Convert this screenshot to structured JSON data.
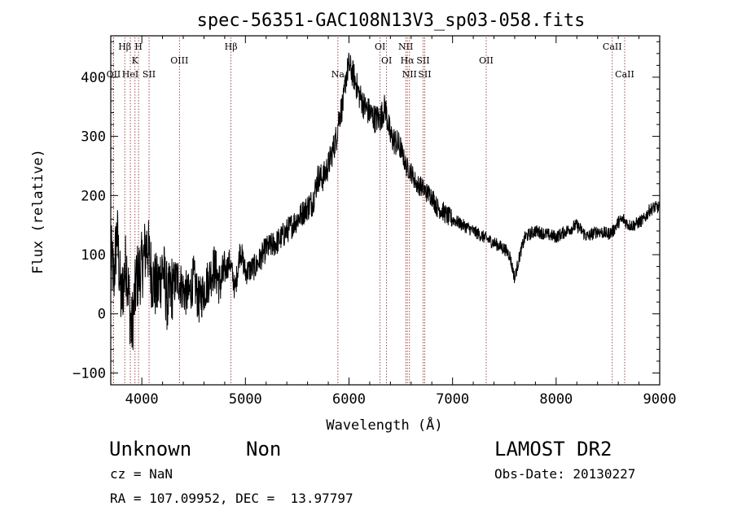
{
  "chart_data": {
    "type": "line",
    "title": "spec-56351-GAC108N13V3_sp03-058.fits",
    "xlabel": "Wavelength (Å)",
    "ylabel": "Flux (relative)",
    "xlim": [
      3700,
      9000
    ],
    "ylim": [
      -120,
      470
    ],
    "xticks": [
      4000,
      5000,
      6000,
      7000,
      8000,
      9000
    ],
    "yticks": [
      -100,
      0,
      100,
      200,
      300,
      400
    ],
    "grid": false,
    "series": [
      {
        "x": [
          3700,
          3730,
          3760,
          3800,
          3850,
          3900,
          3950,
          4000,
          4050,
          4100,
          4150,
          4200,
          4250,
          4300,
          4350,
          4400,
          4450,
          4500,
          4550,
          4600,
          4650,
          4700,
          4750,
          4800,
          4850,
          4900,
          4950,
          5000,
          5100,
          5200,
          5300,
          5400,
          5500,
          5600,
          5650,
          5700,
          5750,
          5800,
          5850,
          5880,
          5900,
          5950,
          5970,
          6000,
          6050,
          6100,
          6150,
          6200,
          6250,
          6300,
          6350,
          6400,
          6450,
          6500,
          6550,
          6600,
          6650,
          6700,
          6750,
          6800,
          6850,
          6900,
          6950,
          7000,
          7100,
          7200,
          7300,
          7400,
          7500,
          7550,
          7600,
          7650,
          7700,
          7800,
          7900,
          8000,
          8100,
          8200,
          8300,
          8400,
          8500,
          8550,
          8600,
          8650,
          8700,
          8750,
          8800,
          8850,
          8900,
          8950,
          9000
        ],
        "y": [
          100,
          60,
          140,
          20,
          90,
          -30,
          60,
          80,
          120,
          60,
          40,
          80,
          20,
          50,
          60,
          40,
          30,
          60,
          20,
          40,
          60,
          80,
          50,
          70,
          90,
          40,
          110,
          70,
          80,
          110,
          120,
          140,
          160,
          180,
          190,
          230,
          230,
          250,
          280,
          300,
          330,
          360,
          400,
          420,
          400,
          370,
          350,
          340,
          330,
          330,
          350,
          300,
          290,
          280,
          250,
          240,
          220,
          215,
          205,
          200,
          180,
          175,
          165,
          160,
          150,
          140,
          130,
          120,
          110,
          100,
          60,
          100,
          130,
          140,
          135,
          130,
          140,
          150,
          130,
          140,
          135,
          140,
          155,
          160,
          150,
          150,
          155,
          160,
          175,
          180,
          180
        ]
      }
    ],
    "lines": [
      {
        "name": "Hβ",
        "wave": 3835,
        "row": 1
      },
      {
        "name": "H",
        "wave": 3968,
        "row": 1
      },
      {
        "name": "K",
        "wave": 3934,
        "row": 2
      },
      {
        "name": "OII",
        "wave": 3727,
        "row": 3
      },
      {
        "name": "HeI",
        "wave": 3889,
        "row": 3
      },
      {
        "name": "SII",
        "wave": 4070,
        "row": 3
      },
      {
        "name": "OIII",
        "wave": 4363,
        "row": 2
      },
      {
        "name": "Hβ",
        "wave": 4861,
        "row": 1
      },
      {
        "name": "Na",
        "wave": 5893,
        "row": 3
      },
      {
        "name": "OI",
        "wave": 6300,
        "row": 1
      },
      {
        "name": "OI",
        "wave": 6363,
        "row": 2
      },
      {
        "name": "NII",
        "wave": 6548,
        "row": 1
      },
      {
        "name": "Hα",
        "wave": 6563,
        "row": 2
      },
      {
        "name": "SII",
        "wave": 6716,
        "row": 2
      },
      {
        "name": "NII",
        "wave": 6584,
        "row": 3
      },
      {
        "name": "SII",
        "wave": 6731,
        "row": 3
      },
      {
        "name": "OII",
        "wave": 7325,
        "row": 2
      },
      {
        "name": "CaII",
        "wave": 8542,
        "row": 1
      },
      {
        "name": "CaII",
        "wave": 8662,
        "row": 3
      }
    ]
  },
  "info": {
    "object_class": "Unknown",
    "subclass": "Non",
    "survey": "LAMOST DR2",
    "cz": "cz = NaN",
    "obs_date": "Obs-Date: 20130227",
    "coords": "RA = 107.09952, DEC =  13.97797"
  }
}
